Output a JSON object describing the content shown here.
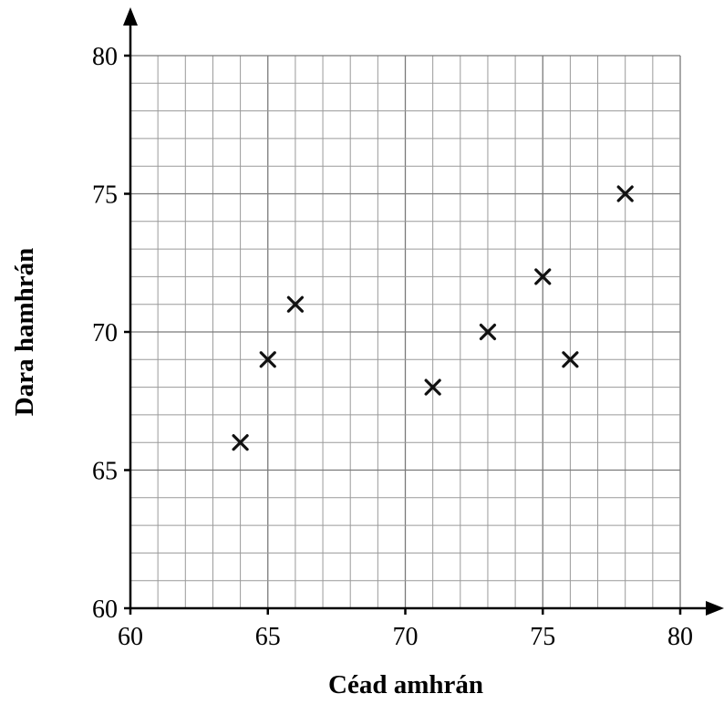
{
  "chart_data": {
    "type": "scatter",
    "title": "",
    "xlabel": "Céad amhrán",
    "ylabel": "Dara hamhrán",
    "xlim": [
      60,
      80
    ],
    "ylim": [
      60,
      80
    ],
    "x_ticks": [
      60,
      65,
      70,
      75,
      80
    ],
    "y_ticks": [
      60,
      65,
      70,
      75,
      80
    ],
    "minor_step": 1,
    "grid": true,
    "marker": "x",
    "points": [
      {
        "x": 64,
        "y": 66
      },
      {
        "x": 65,
        "y": 69
      },
      {
        "x": 66,
        "y": 71
      },
      {
        "x": 71,
        "y": 68
      },
      {
        "x": 73,
        "y": 70
      },
      {
        "x": 75,
        "y": 72
      },
      {
        "x": 76,
        "y": 69
      },
      {
        "x": 78,
        "y": 75
      }
    ]
  }
}
